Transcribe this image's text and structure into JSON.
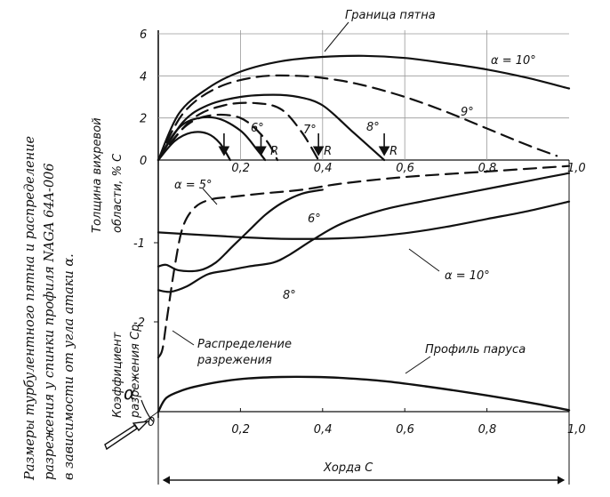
{
  "side_caption": [
    "Размеры турбулентного пятна и распределение",
    "разрежения у спинки профиля NAGA 64A-006",
    "в зависимости от угла атаки α."
  ],
  "chart_data": [
    {
      "type": "line",
      "ylabel": [
        "Толщина вихревой",
        "области, % C"
      ],
      "xlim": [
        0,
        1.0
      ],
      "ylim": [
        0,
        6
      ],
      "x_ticks": [
        "0,2",
        "0,4",
        "0,6",
        "0,8",
        "1,0"
      ],
      "y_ticks": [
        "2",
        "4",
        "6"
      ],
      "origin_label": "0",
      "annotations": {
        "spot_boundary": "Граница пятна",
        "reattach_marker": "R"
      },
      "series": [
        {
          "name": "α = 5°",
          "style": "solid",
          "x": [
            0,
            0.04,
            0.08,
            0.12,
            0.15,
            0.175
          ],
          "y": [
            0,
            0.9,
            1.3,
            1.25,
            0.8,
            0
          ]
        },
        {
          "name": "6°",
          "style": "solid",
          "x": [
            0,
            0.04,
            0.08,
            0.14,
            0.2,
            0.24,
            0.26
          ],
          "y": [
            0,
            1.3,
            1.9,
            2.0,
            1.4,
            0.5,
            0
          ]
        },
        {
          "name": "6°",
          "style": "dashed",
          "x": [
            0,
            0.06,
            0.12,
            0.2,
            0.26,
            0.29
          ],
          "y": [
            0,
            1.5,
            2.1,
            2.0,
            1.0,
            0
          ]
        },
        {
          "name": "7°",
          "style": "dashed",
          "x": [
            0,
            0.08,
            0.16,
            0.24,
            0.3,
            0.35,
            0.39
          ],
          "y": [
            0,
            1.9,
            2.6,
            2.7,
            2.4,
            1.3,
            0
          ]
        },
        {
          "name": "8°",
          "style": "solid",
          "x": [
            0,
            0.06,
            0.12,
            0.2,
            0.28,
            0.34,
            0.4,
            0.47,
            0.55
          ],
          "y": [
            0,
            1.8,
            2.6,
            3.0,
            3.1,
            3.0,
            2.6,
            1.4,
            0
          ]
        },
        {
          "name": "9°",
          "style": "dashed",
          "x": [
            0,
            0.06,
            0.14,
            0.24,
            0.34,
            0.42,
            0.5,
            0.6,
            0.7,
            0.8,
            0.9,
            0.97
          ],
          "y": [
            0,
            2.2,
            3.4,
            3.95,
            4.0,
            3.85,
            3.55,
            3.0,
            2.3,
            1.5,
            0.7,
            0.2
          ]
        },
        {
          "name": "α = 10°",
          "style": "solid",
          "x": [
            0,
            0.05,
            0.12,
            0.2,
            0.3,
            0.4,
            0.5,
            0.6,
            0.7,
            0.8,
            0.9,
            1.0
          ],
          "y": [
            0,
            2.2,
            3.4,
            4.2,
            4.7,
            4.9,
            4.95,
            4.85,
            4.6,
            4.3,
            3.9,
            3.4
          ]
        }
      ],
      "markers_R_x": [
        0.175,
        0.26,
        0.39,
        0.55
      ],
      "markers_arrow_x": [
        0.16,
        0.25,
        0.39,
        0.55
      ]
    },
    {
      "type": "line",
      "ylabel": [
        "Коэффициент",
        "разрежения Cp"
      ],
      "xlim": [
        0,
        1.0
      ],
      "ylim": [
        -2.5,
        0
      ],
      "y_ticks": [
        "-1",
        "-2"
      ],
      "annotations": {
        "distribution": [
          "Распределение",
          "разрежения"
        ]
      },
      "series": [
        {
          "name": "α = 5°",
          "style": "dashed",
          "x": [
            0.0,
            0.01,
            0.02,
            0.04,
            0.06,
            0.09,
            0.13,
            0.18,
            0.25,
            0.35,
            0.45,
            0.6,
            0.8,
            1.0
          ],
          "y": [
            -2.45,
            -2.35,
            -2.0,
            -1.3,
            -0.8,
            -0.55,
            -0.45,
            -0.42,
            -0.38,
            -0.33,
            -0.25,
            -0.17,
            -0.1,
            -0.03
          ]
        },
        {
          "name": "6°",
          "style": "solid",
          "x": [
            0.0,
            0.02,
            0.05,
            0.1,
            0.14,
            0.18,
            0.22,
            0.26,
            0.3,
            0.35,
            0.4
          ],
          "y": [
            -1.3,
            -1.28,
            -1.35,
            -1.35,
            -1.25,
            -1.05,
            -0.85,
            -0.65,
            -0.5,
            -0.38,
            -0.33
          ]
        },
        {
          "name": "8°",
          "style": "solid",
          "x": [
            0.0,
            0.03,
            0.07,
            0.12,
            0.17,
            0.22,
            0.28,
            0.32,
            0.38,
            0.45,
            0.55,
            0.65,
            0.75,
            0.85,
            0.95,
            1.0
          ],
          "y": [
            -1.6,
            -1.62,
            -1.55,
            -1.4,
            -1.35,
            -1.3,
            -1.25,
            -1.15,
            -0.95,
            -0.75,
            -0.58,
            -0.47,
            -0.37,
            -0.27,
            -0.17,
            -0.12
          ]
        },
        {
          "name": "α = 10°",
          "style": "solid",
          "x": [
            0.0,
            0.1,
            0.2,
            0.3,
            0.4,
            0.5,
            0.6,
            0.7,
            0.8,
            0.9,
            1.0
          ],
          "y": [
            -0.87,
            -0.9,
            -0.93,
            -0.95,
            -0.95,
            -0.93,
            -0.88,
            -0.8,
            -0.7,
            -0.6,
            -0.48
          ]
        }
      ],
      "labels": {
        "a5": "α = 5°",
        "s6": "6°",
        "s8": "8°",
        "a10": "α = 10°"
      }
    },
    {
      "type": "line",
      "xlim": [
        0,
        1.0
      ],
      "x_ticks": [
        "0,2",
        "0,4",
        "0,6",
        "0,8",
        "1,0"
      ],
      "origin_label": "0",
      "annotations": {
        "sail_profile": "Профиль паруса",
        "alpha": "α",
        "chord": "Хорда C"
      },
      "series": [
        {
          "name": "Профиль паруса",
          "style": "solid",
          "x": [
            0.0,
            0.02,
            0.06,
            0.1,
            0.16,
            0.22,
            0.3,
            0.38,
            0.45,
            0.55,
            0.65,
            0.75,
            0.85,
            0.95,
            1.0
          ],
          "y": [
            0.0,
            0.4,
            0.62,
            0.75,
            0.88,
            0.96,
            1.0,
            1.0,
            0.97,
            0.88,
            0.73,
            0.56,
            0.37,
            0.16,
            0.04
          ]
        }
      ]
    }
  ]
}
